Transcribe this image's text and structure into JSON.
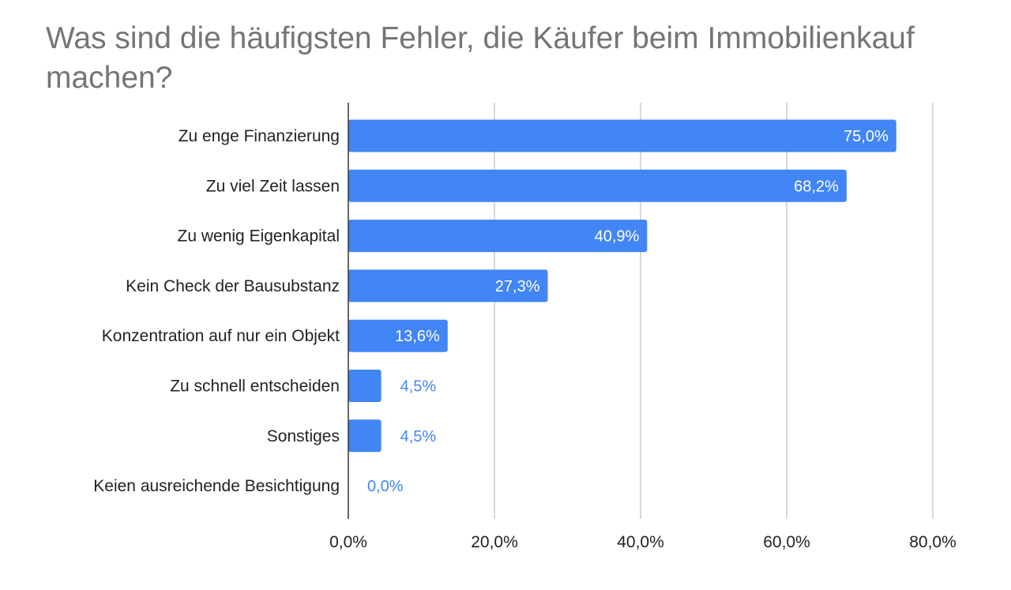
{
  "colors": {
    "bar": "#4285f4",
    "label_inside": "#ffffff",
    "label_outside": "#4285f4",
    "grid": "#cccccc",
    "axis": "#333333",
    "title": "#757575"
  },
  "chart_data": {
    "type": "bar",
    "orientation": "horizontal",
    "title": "Was sind die häufigsten Fehler, die Käufer beim Immobilienkauf machen?",
    "categories": [
      "Zu enge Finanzierung",
      "Zu viel Zeit lassen",
      "Zu wenig Eigenkapital",
      "Kein Check der Bausubstanz",
      "Konzentration auf nur ein Objekt",
      "Zu schnell entscheiden",
      "Sonstiges",
      "Keien ausreichende Besichtigung"
    ],
    "values": [
      75.0,
      68.2,
      40.9,
      27.3,
      13.6,
      4.5,
      4.5,
      0.0
    ],
    "value_labels": [
      "75,0%",
      "68,2%",
      "40,9%",
      "27,3%",
      "13,6%",
      "4,5%",
      "4,5%",
      "0,0%"
    ],
    "xlim": [
      0,
      80
    ],
    "xticks": [
      0,
      20,
      40,
      60,
      80
    ],
    "xtick_labels": [
      "0,0%",
      "20,0%",
      "40,0%",
      "60,0%",
      "80,0%"
    ],
    "xlabel": "",
    "ylabel": "",
    "grid": true,
    "legend": "none"
  }
}
